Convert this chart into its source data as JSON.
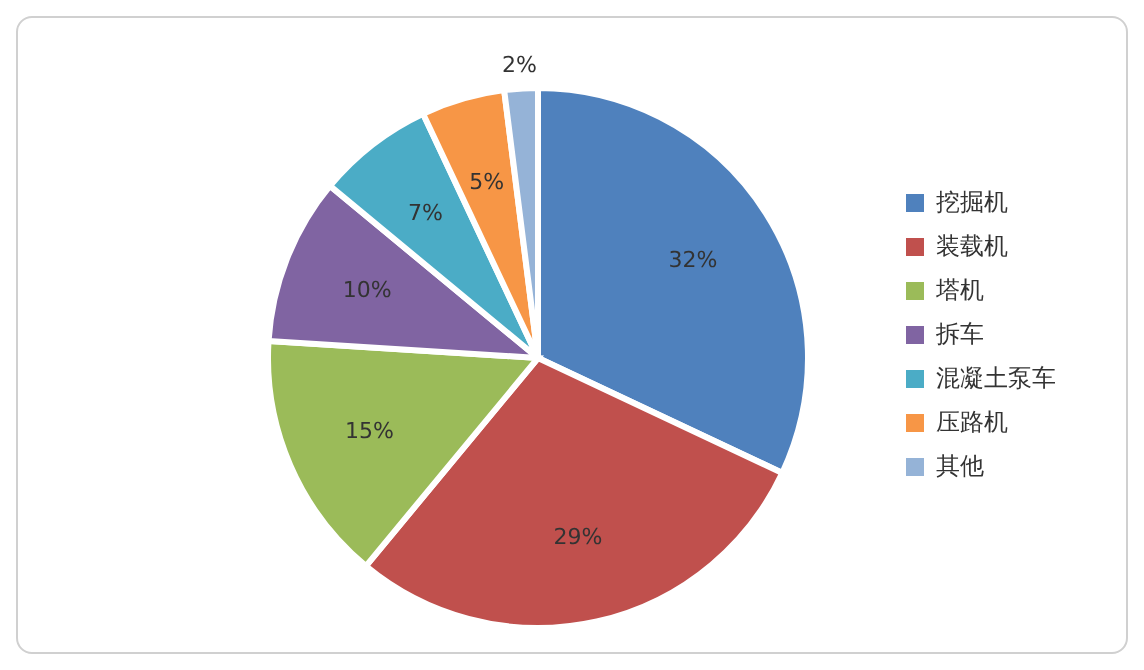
{
  "chart_data": {
    "type": "pie",
    "categories": [
      "挖掘机",
      "装载机",
      "塔机",
      "拆车",
      "混凝土泵车",
      "压路机",
      "其他"
    ],
    "values": [
      32,
      29,
      15,
      10,
      7,
      5,
      2
    ],
    "colors": [
      "#4f81bd",
      "#c0504d",
      "#9bbb59",
      "#8064a2",
      "#4bacc6",
      "#f79646",
      "#95b3d7"
    ],
    "value_labels": [
      "32%",
      "29%",
      "15%",
      "10%",
      "7%",
      "5%",
      "2%"
    ],
    "legend": "right"
  }
}
